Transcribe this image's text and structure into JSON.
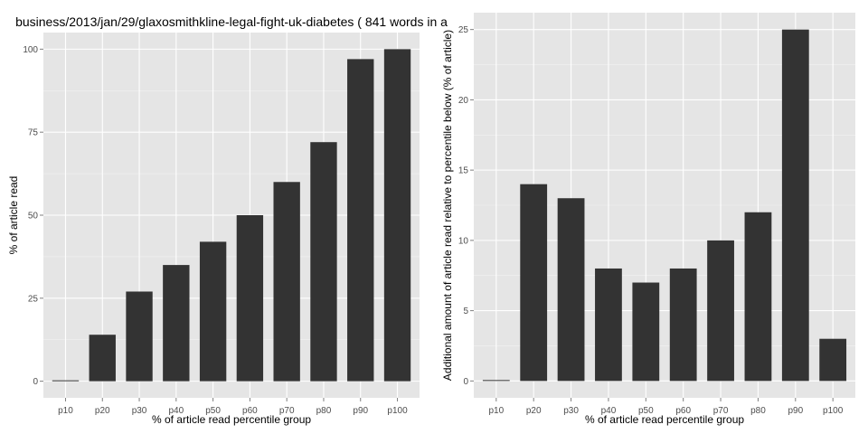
{
  "colors": {
    "panel_bg": "#e5e5e5",
    "grid_major": "#ffffff",
    "grid_minor": "#f2f2f2",
    "bar": "#333333",
    "tick_text": "#4d4d4d"
  },
  "chart_data": [
    {
      "type": "bar",
      "title": "business/2013/jan/29/glaxosmithkline-legal-fight-uk-diabetes ( 841 words in a",
      "xlabel": "% of article read percentile group",
      "ylabel": "% of article read",
      "categories": [
        "p10",
        "p20",
        "p30",
        "p40",
        "p50",
        "p60",
        "p70",
        "p80",
        "p90",
        "p100"
      ],
      "values": [
        0,
        14,
        27,
        35,
        42,
        50,
        60,
        72,
        97,
        100
      ],
      "ylim": [
        -5,
        105
      ],
      "yticks": [
        0,
        25,
        50,
        75,
        100
      ],
      "ytick_labels": [
        "0",
        "25",
        "50",
        "75",
        "100"
      ],
      "grid": true
    },
    {
      "type": "bar",
      "title": "",
      "xlabel": "% of article read percentile group",
      "ylabel": "Additional amount of article read relative to percentile below (% of article)",
      "categories": [
        "p10",
        "p20",
        "p30",
        "p40",
        "p50",
        "p60",
        "p70",
        "p80",
        "p90",
        "p100"
      ],
      "values": [
        0,
        14,
        13,
        8,
        7,
        8,
        10,
        12,
        25,
        3
      ],
      "ylim": [
        -1.2,
        26.2
      ],
      "yticks": [
        0,
        5,
        10,
        15,
        20,
        25
      ],
      "ytick_labels": [
        "0",
        "5",
        "10",
        "15",
        "20",
        "25"
      ],
      "grid": true
    }
  ]
}
